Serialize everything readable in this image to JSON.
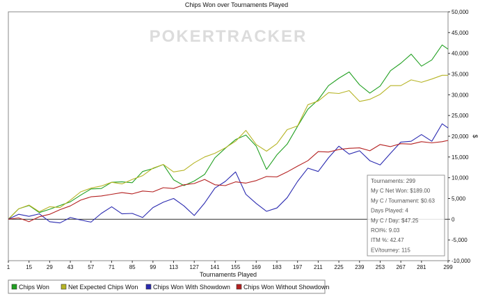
{
  "chart_data": {
    "type": "line",
    "title": "Chips Won over Tournaments Played",
    "xlabel": "Tournaments Played",
    "ylabel": "$",
    "watermark": "POKERTRACKER",
    "xlim": [
      1,
      299
    ],
    "ylim": [
      -10000,
      50000
    ],
    "x_ticks": [
      "1",
      "15",
      "29",
      "43",
      "57",
      "71",
      "85",
      "99",
      "113",
      "127",
      "141",
      "155",
      "169",
      "183",
      "197",
      "211",
      "225",
      "239",
      "253",
      "267",
      "281",
      "299"
    ],
    "y_ticks": [
      "50,000",
      "45,000",
      "40,000",
      "35,000",
      "30,000",
      "25,000",
      "20,000",
      "15,000",
      "10,000",
      "5,000",
      "0",
      "-5,000",
      "-10,000"
    ],
    "grid": false,
    "zero_line": true,
    "legend_position": "bottom",
    "series": [
      {
        "name": "Chips Won",
        "color": "#22a022",
        "x": [
          1,
          8,
          15,
          22,
          29,
          36,
          43,
          50,
          57,
          64,
          71,
          78,
          85,
          92,
          99,
          106,
          113,
          120,
          127,
          134,
          141,
          148,
          155,
          162,
          169,
          176,
          183,
          190,
          197,
          204,
          211,
          218,
          225,
          232,
          239,
          246,
          253,
          260,
          267,
          274,
          281,
          288,
          295,
          299
        ],
        "y": [
          0,
          2500,
          3300,
          1600,
          2400,
          3300,
          4200,
          5800,
          7300,
          7400,
          8900,
          9000,
          8800,
          11500,
          12200,
          13200,
          9500,
          8100,
          9200,
          10800,
          14800,
          17100,
          19200,
          20300,
          17600,
          12000,
          15500,
          18100,
          22400,
          26500,
          28800,
          32200,
          34000,
          35500,
          32400,
          30400,
          32100,
          35800,
          37600,
          39800,
          36900,
          38400,
          42000,
          41000
        ]
      },
      {
        "name": "Net Expected Chips Won",
        "color": "#b6b425",
        "x": [
          1,
          8,
          15,
          22,
          29,
          36,
          43,
          50,
          57,
          64,
          71,
          78,
          85,
          92,
          99,
          106,
          113,
          120,
          127,
          134,
          141,
          148,
          155,
          162,
          169,
          176,
          183,
          190,
          197,
          204,
          211,
          218,
          225,
          232,
          239,
          246,
          253,
          260,
          267,
          274,
          281,
          288,
          295,
          299
        ],
        "y": [
          0,
          2500,
          3400,
          1800,
          3000,
          2800,
          4600,
          6600,
          7500,
          8000,
          8900,
          8500,
          9600,
          10500,
          12300,
          13200,
          11400,
          11800,
          13600,
          15000,
          15900,
          17200,
          18800,
          21400,
          18000,
          16400,
          18200,
          21600,
          22500,
          27600,
          28500,
          30500,
          30300,
          31000,
          28400,
          28900,
          30100,
          32200,
          32200,
          33600,
          33000,
          33800,
          34700,
          34700
        ]
      },
      {
        "name": "Chips Won With Showdown",
        "color": "#2a2ab0",
        "x": [
          1,
          8,
          15,
          22,
          29,
          36,
          43,
          50,
          57,
          64,
          71,
          78,
          85,
          92,
          99,
          106,
          113,
          120,
          127,
          134,
          141,
          148,
          155,
          162,
          169,
          176,
          183,
          190,
          197,
          204,
          211,
          218,
          225,
          232,
          239,
          246,
          253,
          260,
          267,
          274,
          281,
          288,
          295,
          299
        ],
        "y": [
          0,
          1200,
          700,
          1300,
          -600,
          -900,
          400,
          -200,
          -700,
          1400,
          3000,
          1300,
          1400,
          400,
          2800,
          4100,
          5000,
          3200,
          900,
          3900,
          7500,
          9100,
          11400,
          6000,
          3800,
          1900,
          2700,
          5200,
          9100,
          12300,
          11500,
          14800,
          17600,
          15700,
          16500,
          14100,
          13100,
          15900,
          18600,
          18800,
          20400,
          18800,
          23000,
          22000
        ]
      },
      {
        "name": "Chips Won Without Showdown",
        "color": "#b42020",
        "x": [
          1,
          8,
          15,
          22,
          29,
          36,
          43,
          50,
          57,
          64,
          71,
          78,
          85,
          92,
          99,
          106,
          113,
          120,
          127,
          134,
          141,
          148,
          155,
          162,
          169,
          176,
          183,
          190,
          197,
          204,
          211,
          218,
          225,
          232,
          239,
          246,
          253,
          260,
          267,
          274,
          281,
          288,
          295,
          299
        ],
        "y": [
          0,
          300,
          -600,
          600,
          1200,
          2300,
          3200,
          4600,
          5400,
          5600,
          6000,
          6400,
          6100,
          6800,
          6600,
          7600,
          7400,
          8300,
          8600,
          9600,
          8300,
          8100,
          9000,
          8700,
          9300,
          10300,
          10200,
          11400,
          12800,
          14100,
          16300,
          16200,
          16800,
          17100,
          17200,
          16500,
          18000,
          17500,
          18200,
          18100,
          18700,
          18400,
          18700,
          19000
        ]
      }
    ],
    "stats_box": [
      "Tournaments: 299",
      "My C Net Won: $189.00",
      "My C / Tournament: $0.63",
      "Days Played: 4",
      "My C / Day: $47.25",
      "ROI%: 9.03",
      "ITM %: 42.47",
      "EV/tourney: 115"
    ]
  }
}
